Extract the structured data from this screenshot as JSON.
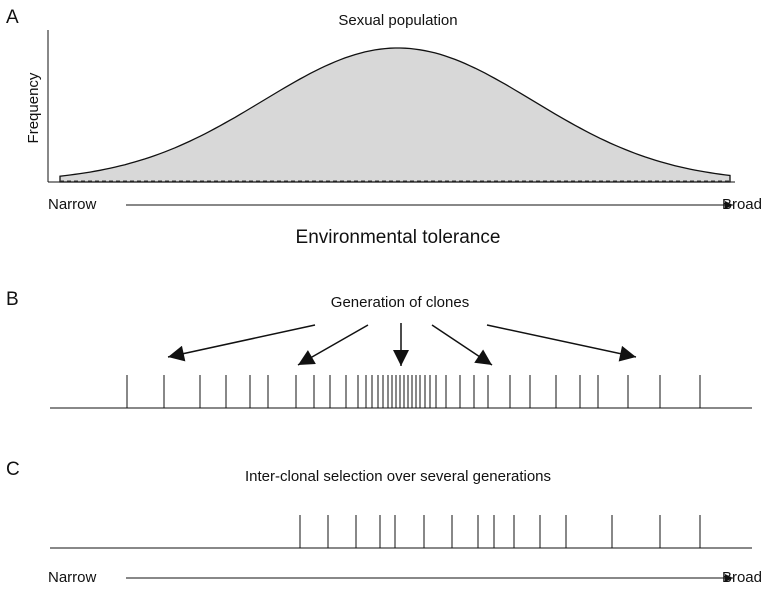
{
  "panels": [
    {
      "label": "A",
      "title": "Sexual population",
      "y_axis_label": "Frequency",
      "x_left": "Narrow",
      "x_right": "Broad",
      "x_axis_label": "Environmental tolerance"
    },
    {
      "label": "B",
      "title": "Generation of clones"
    },
    {
      "label": "C",
      "title": "Inter-clonal selection over several generations",
      "x_left": "Narrow",
      "x_right": "Broad"
    }
  ]
}
